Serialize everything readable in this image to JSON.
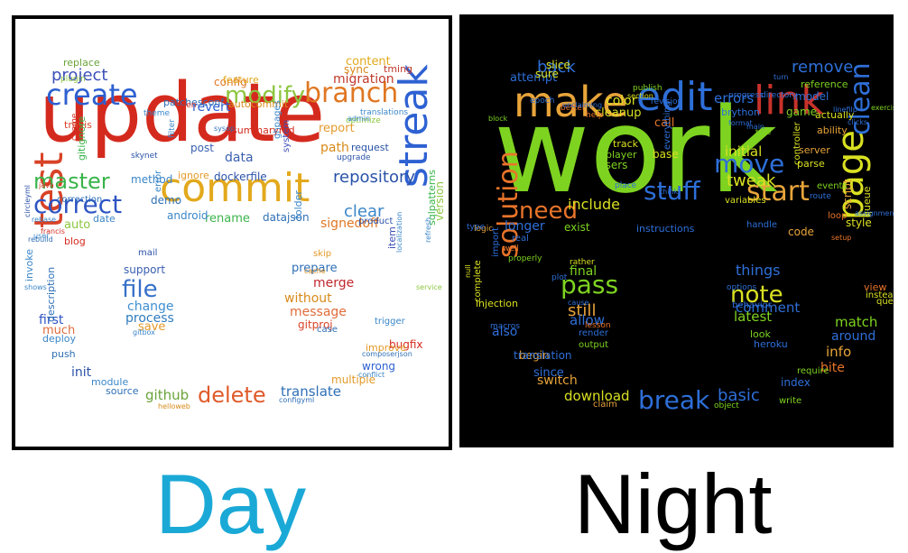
{
  "panels": [
    {
      "id": "day",
      "background": "#ffffff",
      "words": [
        {
          "text": "update",
          "color": "#d42a1e"
        },
        {
          "text": "commit",
          "color": "#e3a91c"
        },
        {
          "text": "create",
          "color": "#2d5fd0"
        },
        {
          "text": "modify",
          "color": "#8cc63f"
        },
        {
          "text": "branch",
          "color": "#e07722"
        },
        {
          "text": "test",
          "color": "#d84327"
        },
        {
          "text": "streak",
          "color": "#2e61d2"
        },
        {
          "text": "correct",
          "color": "#2f55c3"
        },
        {
          "text": "master",
          "color": "#39b44a"
        },
        {
          "text": "project",
          "color": "#3d4fb8"
        },
        {
          "text": "repository",
          "color": "#2a52a8"
        },
        {
          "text": "file",
          "color": "#3670c8"
        },
        {
          "text": "delete",
          "color": "#e05a2a"
        },
        {
          "text": "migration",
          "color": "#c0392b"
        },
        {
          "text": "clear",
          "color": "#3a86c8"
        },
        {
          "text": "github",
          "color": "#6aa33a"
        },
        {
          "text": "translate",
          "color": "#2e6fb6"
        },
        {
          "text": "merge",
          "color": "#c1272d"
        },
        {
          "text": "without",
          "color": "#d88a1a"
        },
        {
          "text": "message",
          "color": "#e06c3a"
        },
        {
          "text": "change",
          "color": "#3e8fd0"
        },
        {
          "text": "support",
          "color": "#3a5fb0"
        },
        {
          "text": "process",
          "color": "#2e7cc0"
        },
        {
          "text": "save",
          "color": "#e39a2a"
        },
        {
          "text": "first",
          "color": "#2f55c3"
        },
        {
          "text": "much",
          "color": "#e06c3a"
        },
        {
          "text": "deploy",
          "color": "#3a86c8"
        },
        {
          "text": "push",
          "color": "#2e6fb6"
        },
        {
          "text": "init",
          "color": "#2a52a8"
        },
        {
          "text": "module",
          "color": "#3a86c8"
        },
        {
          "text": "source",
          "color": "#2e6fb6"
        },
        {
          "text": "wrong",
          "color": "#2e61d2"
        },
        {
          "text": "multiple",
          "color": "#e39a2a"
        },
        {
          "text": "bugfix",
          "color": "#d42a1e"
        },
        {
          "text": "gitproj",
          "color": "#d84327"
        },
        {
          "text": "prepare",
          "color": "#2e6fb6"
        },
        {
          "text": "signedoff",
          "color": "#e07722"
        },
        {
          "text": "path",
          "color": "#d88a1a"
        },
        {
          "text": "report",
          "color": "#e39a2a"
        },
        {
          "text": "content",
          "color": "#e3a91c"
        },
        {
          "text": "sync",
          "color": "#d88a1a"
        },
        {
          "text": "tming",
          "color": "#c0392b"
        },
        {
          "text": "config",
          "color": "#e07722"
        },
        {
          "text": "revert",
          "color": "#2e61d2"
        },
        {
          "text": "autocommit",
          "color": "#d88a1a"
        },
        {
          "text": "summarymd",
          "color": "#d42a1e"
        },
        {
          "text": "ghpages",
          "color": "#3a86c8"
        },
        {
          "text": "system",
          "color": "#3d4fb8"
        },
        {
          "text": "data",
          "color": "#3a5fb0"
        },
        {
          "text": "dockerfile",
          "color": "#2a52a8"
        },
        {
          "text": "rename",
          "color": "#39b44a"
        },
        {
          "text": "datajson",
          "color": "#2e6fb6"
        },
        {
          "text": "android",
          "color": "#3a86c8"
        },
        {
          "text": "demo",
          "color": "#2e6fb6"
        },
        {
          "text": "method",
          "color": "#3a86c8"
        },
        {
          "text": "ignore",
          "color": "#e39a2a"
        },
        {
          "text": "post",
          "color": "#3a5fb0"
        },
        {
          "text": "travis",
          "color": "#d84327"
        },
        {
          "text": "blog",
          "color": "#d42a1e"
        },
        {
          "text": "auto",
          "color": "#8cc63f"
        },
        {
          "text": "date",
          "color": "#3a86c8"
        },
        {
          "text": "replace",
          "color": "#6aa33a"
        },
        {
          "text": "gitignore",
          "color": "#39b44a"
        },
        {
          "text": "description",
          "color": "#2e6fb6"
        },
        {
          "text": "invoke",
          "color": "#3a86c8"
        },
        {
          "text": "item",
          "color": "#3d4fb8"
        },
        {
          "text": "version",
          "color": "#8cc63f"
        },
        {
          "text": "sqlpatterns",
          "color": "#39b44a"
        },
        {
          "text": "improve",
          "color": "#e39a2a"
        },
        {
          "text": "folder",
          "color": "#3a86c8"
        },
        {
          "text": "request",
          "color": "#2a52a8"
        },
        {
          "text": "feature",
          "color": "#e3a91c"
        },
        {
          "text": "patchesconf",
          "color": "#2e6fb6"
        },
        {
          "text": "mail",
          "color": "#2a52a8"
        },
        {
          "text": "skip",
          "color": "#e39a2a"
        },
        {
          "text": "trigger",
          "color": "#3a86c8"
        },
        {
          "text": "case",
          "color": "#2e6fb6"
        },
        {
          "text": "product",
          "color": "#2a52a8"
        },
        {
          "text": "error",
          "color": "#3a86c8"
        },
        {
          "text": "correction",
          "color": "#2e6fb6"
        },
        {
          "text": "translations",
          "color": "#3a86c8"
        },
        {
          "text": "optimize",
          "color": "#8cc63f"
        },
        {
          "text": "upgrade",
          "color": "#2a52a8"
        },
        {
          "text": "open",
          "color": "#d42a1e"
        },
        {
          "text": "theme",
          "color": "#3a86c8"
        },
        {
          "text": "filter",
          "color": "#3a86c8"
        },
        {
          "text": "cname",
          "color": "#d42a1e"
        },
        {
          "text": "skynet",
          "color": "#2a52a8"
        },
        {
          "text": "plugin",
          "color": "#8cc63f"
        },
        {
          "text": "conflict",
          "color": "#3a86c8"
        },
        {
          "text": "helloweb",
          "color": "#d88a1a"
        },
        {
          "text": "configyml",
          "color": "#2e6fb6"
        },
        {
          "text": "gitbox",
          "color": "#3a86c8"
        },
        {
          "text": "composerjson",
          "color": "#2e6fb6"
        },
        {
          "text": "cache",
          "color": "#d88a1a"
        },
        {
          "text": "francis",
          "color": "#d42a1e"
        },
        {
          "text": "rebase",
          "color": "#3a86c8"
        },
        {
          "text": "java",
          "color": "#d42a1e"
        },
        {
          "text": "user",
          "color": "#3a86c8"
        },
        {
          "text": "rebuild",
          "color": "#2e6fb6"
        },
        {
          "text": "circleyml",
          "color": "#2a52a8"
        },
        {
          "text": "shows",
          "color": "#3a86c8"
        },
        {
          "text": "localization",
          "color": "#3a86c8"
        },
        {
          "text": "service",
          "color": "#8cc63f"
        },
        {
          "text": "refresh",
          "color": "#3a86c8"
        },
        {
          "text": "admin",
          "color": "#3a86c8"
        },
        {
          "text": "sysop",
          "color": "#2e6fb6"
        }
      ]
    },
    {
      "id": "night",
      "background": "#000000",
      "words": [
        {
          "text": "work",
          "color": "#7ed321"
        },
        {
          "text": "make",
          "color": "#e8a43a"
        },
        {
          "text": "edit",
          "color": "#2e6fd8"
        },
        {
          "text": "link",
          "color": "#c7322b"
        },
        {
          "text": "page",
          "color": "#d9e021"
        },
        {
          "text": "stuff",
          "color": "#2e6fd8"
        },
        {
          "text": "start",
          "color": "#e8a43a"
        },
        {
          "text": "move",
          "color": "#2e6fd8"
        },
        {
          "text": "clean",
          "color": "#2e6fd8"
        },
        {
          "text": "remove",
          "color": "#2e6fd8"
        },
        {
          "text": "solution",
          "color": "#e8742a"
        },
        {
          "text": "need",
          "color": "#e8742a"
        },
        {
          "text": "pass",
          "color": "#7ed321"
        },
        {
          "text": "note",
          "color": "#d9e021"
        },
        {
          "text": "break",
          "color": "#2e6fd8"
        },
        {
          "text": "back",
          "color": "#2e6fd8"
        },
        {
          "text": "tweak",
          "color": "#d9e021"
        },
        {
          "text": "include",
          "color": "#d9e021"
        },
        {
          "text": "still",
          "color": "#e8a43a"
        },
        {
          "text": "allow",
          "color": "#2e6fd8"
        },
        {
          "text": "final",
          "color": "#7ed321"
        },
        {
          "text": "things",
          "color": "#2e6fd8"
        },
        {
          "text": "comment",
          "color": "#2e6fd8"
        },
        {
          "text": "latest",
          "color": "#7ed321"
        },
        {
          "text": "match",
          "color": "#7ed321"
        },
        {
          "text": "around",
          "color": "#2e6fd8"
        },
        {
          "text": "info",
          "color": "#e8a43a"
        },
        {
          "text": "bite",
          "color": "#e8742a"
        },
        {
          "text": "basic",
          "color": "#2e6fd8"
        },
        {
          "text": "download",
          "color": "#d9e021"
        },
        {
          "text": "switch",
          "color": "#e8a43a"
        },
        {
          "text": "since",
          "color": "#2e6fd8"
        },
        {
          "text": "begin",
          "color": "#e8a43a"
        },
        {
          "text": "also",
          "color": "#2e6fd8"
        },
        {
          "text": "longer",
          "color": "#2e6fd8"
        },
        {
          "text": "initial",
          "color": "#d9e021"
        },
        {
          "text": "errors",
          "color": "#2e6fd8"
        },
        {
          "text": "color",
          "color": "#d9e021"
        },
        {
          "text": "cleanup",
          "color": "#d9e021"
        },
        {
          "text": "attempt",
          "color": "#2e6fd8"
        },
        {
          "text": "call",
          "color": "#e8742a"
        },
        {
          "text": "base",
          "color": "#d9e021"
        },
        {
          "text": "users",
          "color": "#7ed321"
        },
        {
          "text": "player",
          "color": "#7ed321"
        },
        {
          "text": "track",
          "color": "#d9e021"
        },
        {
          "text": "game",
          "color": "#7ed321"
        },
        {
          "text": "model",
          "color": "#2e6fd8"
        },
        {
          "text": "reference",
          "color": "#7ed321"
        },
        {
          "text": "actually",
          "color": "#d9e021"
        },
        {
          "text": "ability",
          "color": "#e8a43a"
        },
        {
          "text": "style",
          "color": "#d9e021"
        },
        {
          "text": "script",
          "color": "#e8a43a"
        },
        {
          "text": "view",
          "color": "#e8742a"
        },
        {
          "text": "instead",
          "color": "#d9e021"
        },
        {
          "text": "query",
          "color": "#d9e021"
        },
        {
          "text": "index",
          "color": "#2e6fd8"
        },
        {
          "text": "require",
          "color": "#7ed321"
        },
        {
          "text": "code",
          "color": "#e8a43a"
        },
        {
          "text": "server",
          "color": "#e8a43a"
        },
        {
          "text": "parse",
          "color": "#d9e021"
        },
        {
          "text": "queue",
          "color": "#d9e021"
        },
        {
          "text": "brython",
          "color": "#2e6fd8"
        },
        {
          "text": "sure",
          "color": "#d9e021"
        },
        {
          "text": "slice",
          "color": "#d9e021"
        },
        {
          "text": "exist",
          "color": "#7ed321"
        },
        {
          "text": "instructions",
          "color": "#2e6fd8"
        },
        {
          "text": "translation",
          "color": "#2e6fd8"
        },
        {
          "text": "injection",
          "color": "#d9e021"
        },
        {
          "text": "heroku",
          "color": "#2e6fd8"
        },
        {
          "text": "look",
          "color": "#7ed321"
        },
        {
          "text": "behavior",
          "color": "#2e6fd8"
        },
        {
          "text": "claim",
          "color": "#e8a43a"
        },
        {
          "text": "render",
          "color": "#2e6fd8"
        },
        {
          "text": "output",
          "color": "#7ed321"
        },
        {
          "text": "real",
          "color": "#2e6fd8"
        },
        {
          "text": "well",
          "color": "#e8742a"
        },
        {
          "text": "import",
          "color": "#2e6fd8"
        },
        {
          "text": "complete",
          "color": "#d9e021"
        },
        {
          "text": "macros",
          "color": "#2e6fd8"
        },
        {
          "text": "handle",
          "color": "#2e6fd8"
        },
        {
          "text": "variables",
          "color": "#d9e021"
        },
        {
          "text": "everything",
          "color": "#2e6fd8"
        },
        {
          "text": "controller",
          "color": "#d9e021"
        },
        {
          "text": "loop",
          "color": "#e8742a"
        },
        {
          "text": "turn",
          "color": "#2e6fd8"
        },
        {
          "text": "events",
          "color": "#7ed321"
        },
        {
          "text": "route",
          "color": "#2e6fd8"
        },
        {
          "text": "write",
          "color": "#7ed321"
        },
        {
          "text": "place",
          "color": "#2e6fd8"
        },
        {
          "text": "revision",
          "color": "#2e6fd8"
        },
        {
          "text": "publish",
          "color": "#7ed321"
        },
        {
          "text": "epoch",
          "color": "#2e6fd8"
        },
        {
          "text": "better",
          "color": "#e8742a"
        },
        {
          "text": "help",
          "color": "#e8742a"
        },
        {
          "text": "progress",
          "color": "#2e6fd8"
        },
        {
          "text": "directory",
          "color": "#2e6fd8"
        },
        {
          "text": "object",
          "color": "#7ed321"
        },
        {
          "text": "rather",
          "color": "#d9e021"
        },
        {
          "text": "options",
          "color": "#2e6fd8"
        },
        {
          "text": "properly",
          "color": "#7ed321"
        },
        {
          "text": "logic",
          "color": "#e8a43a"
        },
        {
          "text": "type",
          "color": "#2e6fd8"
        },
        {
          "text": "think",
          "color": "#2e6fd8"
        },
        {
          "text": "block",
          "color": "#7ed321"
        },
        {
          "text": "main",
          "color": "#2e6fd8"
        },
        {
          "text": "assignment",
          "color": "#2e6fd8"
        },
        {
          "text": "setup",
          "color": "#e8742a"
        },
        {
          "text": "unclaiming",
          "color": "#2e6fd8"
        },
        {
          "text": "cause",
          "color": "#2e6fd8"
        },
        {
          "text": "null",
          "color": "#d9e021"
        },
        {
          "text": "take",
          "color": "#7ed321"
        },
        {
          "text": "format",
          "color": "#2e6fd8"
        },
        {
          "text": "section",
          "color": "#d9e021"
        },
        {
          "text": "clicks",
          "color": "#2e6fd8"
        },
        {
          "text": "exercise",
          "color": "#7ed321"
        },
        {
          "text": "linefilp",
          "color": "#2e6fd8"
        },
        {
          "text": "plot",
          "color": "#2e6fd8"
        },
        {
          "text": "lesson",
          "color": "#e8742a"
        }
      ]
    }
  ],
  "captions": {
    "day": "Day",
    "night": "Night"
  }
}
